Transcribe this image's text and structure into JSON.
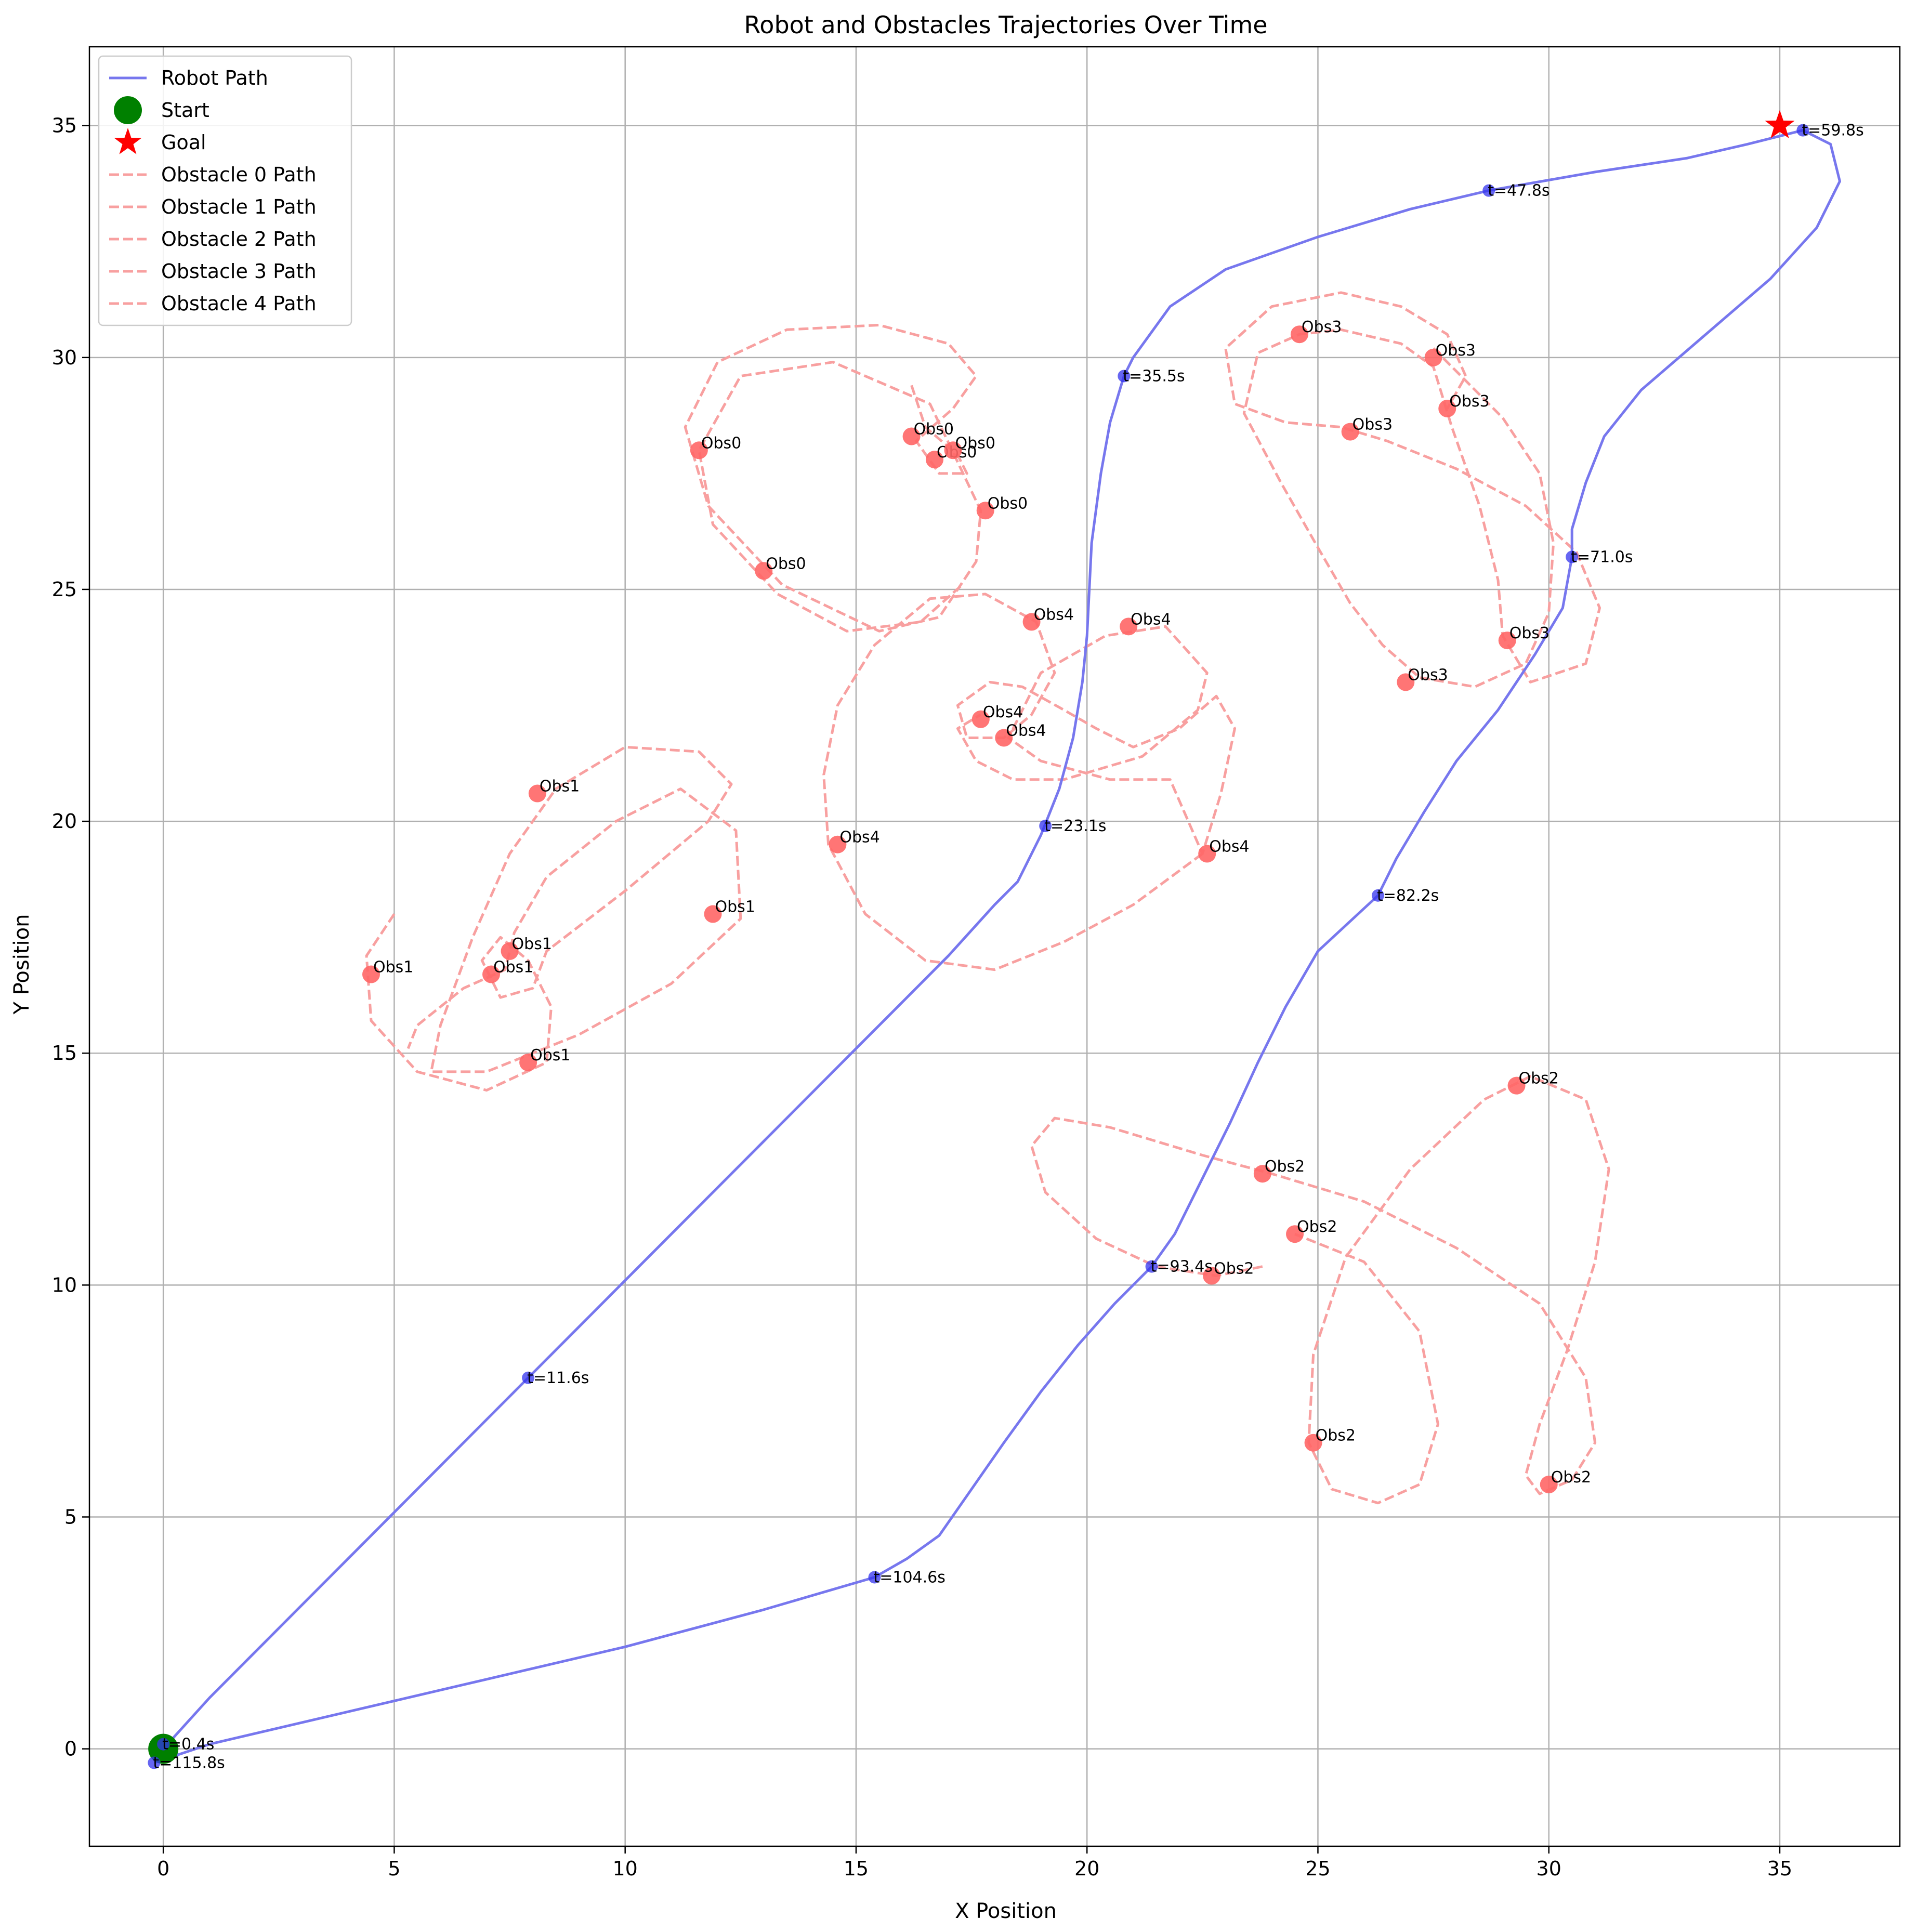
{
  "chart_data": {
    "type": "line",
    "title": "Robot and Obstacles Trajectories Over Time",
    "xlabel": "X Position",
    "ylabel": "Y Position",
    "xlim": [
      -1.6,
      37.6
    ],
    "ylim": [
      -2.1,
      36.7
    ],
    "xticks": [
      0,
      5,
      10,
      15,
      20,
      25,
      30,
      35
    ],
    "yticks": [
      0,
      5,
      10,
      15,
      20,
      25,
      30,
      35
    ],
    "grid": true,
    "legend_position": "top-left",
    "colors": {
      "robot": "#7777ee",
      "obstacle": "#f8a0a0",
      "start": "#008000",
      "goal": "#ff0000",
      "time_marker": "#3333ee",
      "obstacle_marker": "#ff6666"
    },
    "legend": [
      {
        "label": "Robot Path",
        "kind": "solid"
      },
      {
        "label": "Start",
        "kind": "start"
      },
      {
        "label": "Goal",
        "kind": "goal"
      },
      {
        "label": "Obstacle 0 Path",
        "kind": "dashed"
      },
      {
        "label": "Obstacle 1 Path",
        "kind": "dashed"
      },
      {
        "label": "Obstacle 2 Path",
        "kind": "dashed"
      },
      {
        "label": "Obstacle 3 Path",
        "kind": "dashed"
      },
      {
        "label": "Obstacle 4 Path",
        "kind": "dashed"
      }
    ],
    "start": {
      "x": 0,
      "y": 0
    },
    "goal": {
      "x": 35,
      "y": 35
    },
    "robot_path": [
      [
        0,
        0
      ],
      [
        1,
        1.1
      ],
      [
        2,
        2.1
      ],
      [
        3,
        3.1
      ],
      [
        4,
        4.1
      ],
      [
        5,
        5.1
      ],
      [
        6,
        6.1
      ],
      [
        7,
        7.1
      ],
      [
        8,
        8.1
      ],
      [
        9,
        9.1
      ],
      [
        10,
        10.1
      ],
      [
        11,
        11.1
      ],
      [
        12,
        12.1
      ],
      [
        13,
        13.1
      ],
      [
        14,
        14.1
      ],
      [
        15,
        15.1
      ],
      [
        16,
        16.1
      ],
      [
        17,
        17.1
      ],
      [
        18,
        18.2
      ],
      [
        18.5,
        18.7
      ],
      [
        19,
        19.7
      ],
      [
        19.4,
        20.7
      ],
      [
        19.7,
        21.8
      ],
      [
        19.9,
        23
      ],
      [
        20,
        24
      ],
      [
        20.1,
        26
      ],
      [
        20.3,
        27.5
      ],
      [
        20.5,
        28.6
      ],
      [
        20.8,
        29.6
      ],
      [
        21,
        30
      ],
      [
        21.8,
        31.1
      ],
      [
        23,
        31.9
      ],
      [
        25,
        32.6
      ],
      [
        27,
        33.2
      ],
      [
        28.7,
        33.6
      ],
      [
        31,
        34
      ],
      [
        33,
        34.3
      ],
      [
        34.3,
        34.6
      ],
      [
        35.5,
        34.9
      ],
      [
        36.1,
        34.6
      ],
      [
        36.3,
        33.8
      ],
      [
        35.8,
        32.8
      ],
      [
        34.8,
        31.7
      ],
      [
        33.4,
        30.5
      ],
      [
        32,
        29.3
      ],
      [
        31.2,
        28.3
      ],
      [
        30.8,
        27.3
      ],
      [
        30.5,
        26.3
      ],
      [
        30.5,
        25.7
      ],
      [
        30.3,
        24.6
      ],
      [
        29.7,
        23.6
      ],
      [
        28.9,
        22.4
      ],
      [
        28,
        21.3
      ],
      [
        27.3,
        20.2
      ],
      [
        26.7,
        19.2
      ],
      [
        26.3,
        18.4
      ],
      [
        25,
        17.2
      ],
      [
        24.3,
        16
      ],
      [
        23.7,
        14.8
      ],
      [
        23.1,
        13.5
      ],
      [
        22.5,
        12.3
      ],
      [
        21.9,
        11.1
      ],
      [
        21.4,
        10.4
      ],
      [
        20.6,
        9.6
      ],
      [
        19.8,
        8.7
      ],
      [
        19,
        7.7
      ],
      [
        18.2,
        6.6
      ],
      [
        17.5,
        5.6
      ],
      [
        16.8,
        4.6
      ],
      [
        16.1,
        4.1
      ],
      [
        15.4,
        3.7
      ],
      [
        13,
        3
      ],
      [
        10,
        2.2
      ],
      [
        7,
        1.5
      ],
      [
        4,
        0.8
      ],
      [
        1,
        0.1
      ],
      [
        -0.2,
        -0.3
      ]
    ],
    "time_markers": [
      {
        "x": 0,
        "y": 0.1,
        "label": "t=0.4s"
      },
      {
        "x": 7.9,
        "y": 8.0,
        "label": "t=11.6s"
      },
      {
        "x": 19.1,
        "y": 19.9,
        "label": "t=23.1s"
      },
      {
        "x": 20.8,
        "y": 29.6,
        "label": "t=35.5s"
      },
      {
        "x": 28.7,
        "y": 33.6,
        "label": "t=47.8s"
      },
      {
        "x": 35.5,
        "y": 34.9,
        "label": "t=59.8s"
      },
      {
        "x": 30.5,
        "y": 25.7,
        "label": "t=71.0s"
      },
      {
        "x": 26.3,
        "y": 18.4,
        "label": "t=82.2s"
      },
      {
        "x": 21.4,
        "y": 10.4,
        "label": "t=93.4s"
      },
      {
        "x": 15.4,
        "y": 3.7,
        "label": "t=104.6s"
      },
      {
        "x": -0.2,
        "y": -0.3,
        "label": "t=115.8s"
      }
    ],
    "obstacles": [
      {
        "label": "Obs0",
        "path": [
          [
            16.2,
            29.4
          ],
          [
            16.5,
            28.5
          ],
          [
            17.2,
            27.9
          ],
          [
            17.4,
            27.5
          ],
          [
            16.8,
            27.5
          ],
          [
            16.3,
            28.2
          ],
          [
            17.1,
            28.9
          ],
          [
            17.6,
            29.6
          ],
          [
            17.0,
            30.3
          ],
          [
            15.5,
            30.7
          ],
          [
            13.5,
            30.6
          ],
          [
            12.0,
            29.9
          ],
          [
            11.3,
            28.5
          ],
          [
            11.8,
            26.8
          ],
          [
            13.4,
            25.1
          ],
          [
            15.5,
            24.1
          ],
          [
            16.8,
            24.4
          ],
          [
            17.6,
            25.6
          ],
          [
            17.7,
            26.7
          ],
          [
            16.6,
            29.0
          ],
          [
            14.5,
            29.9
          ],
          [
            12.5,
            29.6
          ],
          [
            11.6,
            28.0
          ],
          [
            11.9,
            26.4
          ],
          [
            13.3,
            24.9
          ],
          [
            14.8,
            24.1
          ],
          [
            16.4,
            24.3
          ],
          [
            17.3,
            25.1
          ]
        ],
        "markers": [
          [
            11.6,
            28.0
          ],
          [
            16.2,
            28.3
          ],
          [
            16.7,
            27.8
          ],
          [
            17.1,
            28.0
          ],
          [
            17.8,
            26.7
          ],
          [
            13.0,
            25.4
          ]
        ]
      },
      {
        "label": "Obs1",
        "path": [
          [
            5.0,
            18.0
          ],
          [
            4.4,
            17.1
          ],
          [
            4.5,
            15.7
          ],
          [
            5.5,
            14.6
          ],
          [
            7.0,
            14.2
          ],
          [
            8.3,
            14.8
          ],
          [
            8.4,
            16.0
          ],
          [
            7.9,
            17.0
          ],
          [
            7.3,
            17.5
          ],
          [
            6.9,
            17.0
          ],
          [
            7.3,
            16.2
          ],
          [
            8.0,
            16.4
          ],
          [
            8.3,
            17.2
          ],
          [
            10.0,
            18.5
          ],
          [
            11.8,
            20.0
          ],
          [
            12.3,
            20.8
          ],
          [
            11.6,
            21.5
          ],
          [
            10.0,
            21.6
          ],
          [
            8.5,
            20.7
          ],
          [
            7.5,
            19.3
          ],
          [
            6.7,
            17.5
          ],
          [
            6.0,
            15.6
          ],
          [
            5.8,
            14.6
          ],
          [
            7.0,
            14.6
          ],
          [
            9.0,
            15.4
          ],
          [
            11.0,
            16.5
          ],
          [
            12.5,
            17.9
          ],
          [
            12.4,
            19.8
          ],
          [
            11.2,
            20.7
          ],
          [
            9.8,
            20.0
          ],
          [
            8.3,
            18.8
          ],
          [
            7.6,
            17.6
          ],
          [
            7.4,
            16.8
          ],
          [
            6.5,
            16.4
          ],
          [
            5.5,
            15.6
          ],
          [
            5.3,
            15.1
          ]
        ],
        "markers": [
          [
            4.5,
            16.7
          ],
          [
            7.1,
            16.7
          ],
          [
            7.5,
            17.2
          ],
          [
            8.1,
            20.6
          ],
          [
            11.9,
            18.0
          ],
          [
            7.9,
            14.8
          ]
        ]
      },
      {
        "label": "Obs2",
        "path": [
          [
            23.8,
            10.4
          ],
          [
            22.8,
            10.2
          ],
          [
            21.5,
            10.4
          ],
          [
            20.2,
            11.0
          ],
          [
            19.1,
            12.0
          ],
          [
            18.8,
            13.0
          ],
          [
            19.3,
            13.6
          ],
          [
            20.5,
            13.4
          ],
          [
            22.5,
            12.8
          ],
          [
            24.0,
            12.4
          ],
          [
            26.0,
            11.8
          ],
          [
            28.0,
            10.8
          ],
          [
            29.8,
            9.6
          ],
          [
            30.8,
            8.0
          ],
          [
            31.0,
            6.6
          ],
          [
            30.5,
            5.8
          ],
          [
            29.8,
            5.5
          ],
          [
            29.5,
            5.9
          ],
          [
            29.8,
            7.0
          ],
          [
            30.4,
            8.6
          ],
          [
            31.0,
            10.5
          ],
          [
            31.3,
            12.5
          ],
          [
            30.8,
            14.0
          ],
          [
            29.6,
            14.5
          ],
          [
            28.6,
            14.0
          ],
          [
            27.0,
            12.5
          ],
          [
            25.6,
            10.6
          ],
          [
            24.9,
            8.5
          ],
          [
            24.8,
            6.6
          ],
          [
            25.3,
            5.6
          ],
          [
            26.3,
            5.3
          ],
          [
            27.2,
            5.7
          ],
          [
            27.6,
            7.0
          ],
          [
            27.2,
            9.0
          ],
          [
            26.0,
            10.5
          ],
          [
            24.5,
            11.1
          ]
        ],
        "markers": [
          [
            23.8,
            12.4
          ],
          [
            24.5,
            11.1
          ],
          [
            22.7,
            10.2
          ],
          [
            24.9,
            6.6
          ],
          [
            29.3,
            14.3
          ],
          [
            30.0,
            5.7
          ]
        ]
      },
      {
        "label": "Obs3",
        "path": [
          [
            27.5,
            30.2
          ],
          [
            28.2,
            29.5
          ],
          [
            29.0,
            28.7
          ],
          [
            29.8,
            27.5
          ],
          [
            30.1,
            26.0
          ],
          [
            30.0,
            24.5
          ],
          [
            29.5,
            23.4
          ],
          [
            28.4,
            22.9
          ],
          [
            27.2,
            23.1
          ],
          [
            26.4,
            23.8
          ],
          [
            25.7,
            24.7
          ],
          [
            25.0,
            25.9
          ],
          [
            24.2,
            27.3
          ],
          [
            23.4,
            28.8
          ],
          [
            23.7,
            30.1
          ],
          [
            24.6,
            30.5
          ],
          [
            25.5,
            30.6
          ],
          [
            26.8,
            30.3
          ],
          [
            27.5,
            29.8
          ],
          [
            27.9,
            28.5
          ],
          [
            28.5,
            26.8
          ],
          [
            28.9,
            25.2
          ],
          [
            29.0,
            24.0
          ],
          [
            29.6,
            23.0
          ],
          [
            30.8,
            23.4
          ],
          [
            31.1,
            24.6
          ],
          [
            30.6,
            25.8
          ],
          [
            29.5,
            26.8
          ],
          [
            28.0,
            27.6
          ],
          [
            26.5,
            28.2
          ],
          [
            25.5,
            28.5
          ],
          [
            24.3,
            28.6
          ],
          [
            23.2,
            29.0
          ],
          [
            23.0,
            30.2
          ],
          [
            24.0,
            31.1
          ],
          [
            25.5,
            31.4
          ],
          [
            26.8,
            31.1
          ],
          [
            27.8,
            30.5
          ],
          [
            28.2,
            29.6
          ],
          [
            27.8,
            28.9
          ]
        ],
        "markers": [
          [
            24.6,
            30.5
          ],
          [
            27.5,
            30.0
          ],
          [
            25.7,
            28.4
          ],
          [
            27.8,
            28.9
          ],
          [
            29.1,
            23.9
          ],
          [
            26.9,
            23.0
          ]
        ]
      },
      {
        "label": "Obs4",
        "path": [
          [
            22.5,
            19.3
          ],
          [
            21.0,
            18.2
          ],
          [
            19.5,
            17.4
          ],
          [
            18.0,
            16.8
          ],
          [
            16.5,
            17.0
          ],
          [
            15.2,
            18.0
          ],
          [
            14.4,
            19.5
          ],
          [
            14.3,
            21.0
          ],
          [
            14.6,
            22.5
          ],
          [
            15.4,
            23.8
          ],
          [
            16.6,
            24.8
          ],
          [
            17.8,
            24.9
          ],
          [
            18.9,
            24.3
          ],
          [
            19.3,
            23.2
          ],
          [
            18.8,
            22.3
          ],
          [
            18.2,
            21.8
          ],
          [
            17.4,
            21.8
          ],
          [
            17.2,
            22.5
          ],
          [
            17.9,
            23.0
          ],
          [
            18.6,
            22.9
          ],
          [
            19.5,
            22.4
          ],
          [
            20.2,
            22.0
          ],
          [
            21.0,
            21.6
          ],
          [
            22.0,
            22.0
          ],
          [
            22.8,
            22.7
          ],
          [
            23.2,
            22.0
          ],
          [
            22.9,
            20.6
          ],
          [
            22.5,
            19.3
          ],
          [
            21.8,
            20.9
          ],
          [
            20.5,
            20.9
          ],
          [
            19.0,
            21.3
          ],
          [
            18.3,
            21.8
          ],
          [
            19.0,
            23.2
          ],
          [
            20.4,
            24.0
          ],
          [
            21.7,
            24.2
          ],
          [
            22.6,
            23.2
          ],
          [
            22.4,
            22.4
          ],
          [
            21.2,
            21.4
          ],
          [
            19.5,
            20.9
          ],
          [
            18.4,
            20.9
          ],
          [
            17.6,
            21.3
          ],
          [
            17.2,
            22.0
          ],
          [
            17.7,
            22.3
          ]
        ],
        "markers": [
          [
            18.8,
            24.3
          ],
          [
            20.9,
            24.2
          ],
          [
            17.7,
            22.2
          ],
          [
            18.2,
            21.8
          ],
          [
            14.6,
            19.5
          ],
          [
            22.6,
            19.3
          ]
        ]
      }
    ]
  }
}
